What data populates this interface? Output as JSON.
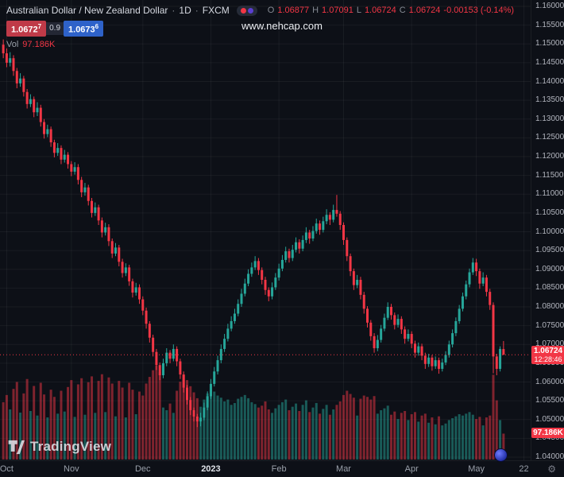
{
  "header": {
    "symbol": "Australian Dollar / New Zealand Dollar",
    "sep": "·",
    "interval": "1D",
    "exchange": "FXCM",
    "ohlc": {
      "o_label": "O",
      "o": "1.06877",
      "h_label": "H",
      "h": "1.07091",
      "l_label": "L",
      "l": "1.06724",
      "c_label": "C",
      "c": "1.06724",
      "change": "-0.00153 (-0.14%)"
    }
  },
  "quote": {
    "sell": "1.0672",
    "sell_sup": "7",
    "spread": "0.9",
    "buy": "1.0673",
    "buy_sup": "6"
  },
  "volume_legend": {
    "label": "Vol",
    "value": "97.186K"
  },
  "watermark": "www.nehcap.com",
  "logo_text": "TradingView",
  "price_tag": {
    "price": "1.06724",
    "countdown": "12:28:46"
  },
  "volume_tag": "97.186K",
  "icons": {
    "gear": "⚙"
  },
  "colors": {
    "up": "#26a69a",
    "down": "#f23645",
    "grid": "rgba(255,255,255,0.05)",
    "background": "#0d1017",
    "axis_text": "#b2b5be",
    "sell_badge": "#bf3a48",
    "buy_badge": "#2e62c9"
  },
  "chart_data": {
    "type": "candlestick",
    "title": "Australian Dollar / New Zealand Dollar · 1D · FXCM",
    "legend_volume": "Vol 97.186K",
    "y_axis": {
      "min": 1.04,
      "max": 1.16,
      "tick_step": 0.005,
      "tick_labels": [
        "1.16000",
        "1.15500",
        "1.15000",
        "1.14500",
        "1.14000",
        "1.13500",
        "1.13000",
        "1.12500",
        "1.12000",
        "1.11500",
        "1.11000",
        "1.10500",
        "1.10000",
        "1.09500",
        "1.09000",
        "1.08500",
        "1.08000",
        "1.07500",
        "1.07000",
        "1.06500",
        "1.06000",
        "1.05500",
        "1.05000",
        "1.04500",
        "1.04000"
      ]
    },
    "x_axis": {
      "labels": [
        {
          "text": "Oct",
          "i": 1
        },
        {
          "text": "Nov",
          "i": 20
        },
        {
          "text": "Dec",
          "i": 41
        },
        {
          "text": "2023",
          "i": 61,
          "emph": true
        },
        {
          "text": "Feb",
          "i": 81
        },
        {
          "text": "Mar",
          "i": 100
        },
        {
          "text": "Apr",
          "i": 120
        },
        {
          "text": "May",
          "i": 139
        },
        {
          "text": "22",
          "i": 153
        }
      ]
    },
    "last_price": 1.06724,
    "volume_max": 352,
    "candles": [
      [
        1.1498,
        1.1512,
        1.1462,
        1.1475,
        215
      ],
      [
        1.1475,
        1.1488,
        1.1438,
        1.145,
        242
      ],
      [
        1.145,
        1.1478,
        1.144,
        1.1462,
        188
      ],
      [
        1.1462,
        1.147,
        1.1415,
        1.1428,
        265
      ],
      [
        1.1428,
        1.1436,
        1.1382,
        1.1395,
        291
      ],
      [
        1.1395,
        1.1422,
        1.1386,
        1.1408,
        176
      ],
      [
        1.1408,
        1.1415,
        1.136,
        1.1372,
        248
      ],
      [
        1.1372,
        1.138,
        1.1328,
        1.134,
        302
      ],
      [
        1.134,
        1.1366,
        1.1332,
        1.1353,
        182
      ],
      [
        1.1353,
        1.136,
        1.1305,
        1.1318,
        276
      ],
      [
        1.1318,
        1.1345,
        1.1308,
        1.133,
        165
      ],
      [
        1.133,
        1.1338,
        1.128,
        1.1292,
        288
      ],
      [
        1.1292,
        1.13,
        1.1248,
        1.126,
        244
      ],
      [
        1.126,
        1.1285,
        1.1252,
        1.1273,
        158
      ],
      [
        1.1273,
        1.128,
        1.1226,
        1.1238,
        262
      ],
      [
        1.1238,
        1.1245,
        1.1198,
        1.121,
        235
      ],
      [
        1.121,
        1.1236,
        1.1202,
        1.1223,
        172
      ],
      [
        1.1223,
        1.123,
        1.118,
        1.1192,
        258
      ],
      [
        1.1192,
        1.1218,
        1.1184,
        1.1205,
        180
      ],
      [
        1.1205,
        1.1212,
        1.1168,
        1.118,
        272
      ],
      [
        1.118,
        1.1188,
        1.1148,
        1.116,
        298
      ],
      [
        1.116,
        1.1185,
        1.1152,
        1.1172,
        160
      ],
      [
        1.1172,
        1.118,
        1.1126,
        1.1138,
        282
      ],
      [
        1.1138,
        1.1146,
        1.1092,
        1.1105,
        305
      ],
      [
        1.1105,
        1.113,
        1.1096,
        1.1118,
        168
      ],
      [
        1.1118,
        1.1125,
        1.107,
        1.1082,
        290
      ],
      [
        1.1082,
        1.109,
        1.1038,
        1.105,
        312
      ],
      [
        1.105,
        1.1078,
        1.1042,
        1.1065,
        175
      ],
      [
        1.1065,
        1.1072,
        1.1018,
        1.103,
        295
      ],
      [
        1.103,
        1.1038,
        1.0985,
        1.0998,
        320
      ],
      [
        1.0998,
        1.1024,
        1.099,
        1.1012,
        178
      ],
      [
        1.1012,
        1.102,
        1.0962,
        1.0975,
        308
      ],
      [
        1.0975,
        1.0982,
        1.093,
        1.0942,
        285
      ],
      [
        1.0942,
        1.097,
        1.0935,
        1.0958,
        162
      ],
      [
        1.0958,
        1.0965,
        1.0908,
        1.092,
        295
      ],
      [
        1.092,
        1.0928,
        1.0878,
        1.089,
        270
      ],
      [
        1.089,
        1.0916,
        1.0882,
        1.0905,
        158
      ],
      [
        1.0905,
        1.0912,
        1.0856,
        1.0868,
        288
      ],
      [
        1.0868,
        1.0875,
        1.0825,
        1.0838,
        262
      ],
      [
        1.0838,
        1.0864,
        1.083,
        1.0852,
        170
      ],
      [
        1.0852,
        1.086,
        1.0808,
        1.082,
        255
      ],
      [
        1.082,
        1.0828,
        1.0778,
        1.079,
        240
      ],
      [
        1.079,
        1.0798,
        1.0742,
        1.0755,
        285
      ],
      [
        1.0755,
        1.0762,
        1.0705,
        1.0718,
        310
      ],
      [
        1.0718,
        1.0726,
        1.0668,
        1.068,
        335
      ],
      [
        1.068,
        1.0688,
        1.0632,
        1.0645,
        352
      ],
      [
        1.0645,
        1.0652,
        1.0605,
        1.0618,
        328
      ],
      [
        1.0618,
        1.0662,
        1.061,
        1.065,
        195
      ],
      [
        1.065,
        1.069,
        1.0642,
        1.0678,
        185
      ],
      [
        1.0678,
        1.0685,
        1.065,
        1.0662,
        210
      ],
      [
        1.0662,
        1.07,
        1.0655,
        1.0688,
        175
      ],
      [
        1.0688,
        1.0695,
        1.0642,
        1.0655,
        258
      ],
      [
        1.0655,
        1.0662,
        1.0608,
        1.062,
        292
      ],
      [
        1.062,
        1.0628,
        1.0572,
        1.0585,
        315
      ],
      [
        1.0585,
        1.0592,
        1.054,
        1.0552,
        298
      ],
      [
        1.0552,
        1.056,
        1.0512,
        1.0525,
        275
      ],
      [
        1.0525,
        1.0532,
        1.0495,
        1.0508,
        252
      ],
      [
        1.0508,
        1.0515,
        1.048,
        1.0495,
        230
      ],
      [
        1.0495,
        1.0518,
        1.0482,
        1.0505,
        198
      ],
      [
        1.0505,
        1.0545,
        1.0498,
        1.0532,
        225
      ],
      [
        1.0532,
        1.0575,
        1.0525,
        1.0562,
        248
      ],
      [
        1.0562,
        1.0608,
        1.0555,
        1.0595,
        262
      ],
      [
        1.0595,
        1.064,
        1.0588,
        1.0628,
        255
      ],
      [
        1.0628,
        1.067,
        1.062,
        1.0658,
        240
      ],
      [
        1.0658,
        1.07,
        1.065,
        1.0688,
        232
      ],
      [
        1.0688,
        1.0728,
        1.068,
        1.0715,
        218
      ],
      [
        1.0715,
        1.0755,
        1.0708,
        1.0742,
        225
      ],
      [
        1.0742,
        1.0775,
        1.0735,
        1.0762,
        205
      ],
      [
        1.0762,
        1.0795,
        1.0755,
        1.0782,
        212
      ],
      [
        1.0782,
        1.082,
        1.0775,
        1.0808,
        228
      ],
      [
        1.0808,
        1.0848,
        1.08,
        1.0835,
        235
      ],
      [
        1.0835,
        1.0875,
        1.0828,
        1.0862,
        242
      ],
      [
        1.0862,
        1.09,
        1.0855,
        1.0888,
        230
      ],
      [
        1.0888,
        1.0918,
        1.088,
        1.0905,
        215
      ],
      [
        1.0905,
        1.0935,
        1.0898,
        1.0922,
        208
      ],
      [
        1.0922,
        1.093,
        1.0885,
        1.0898,
        195
      ],
      [
        1.0898,
        1.0905,
        1.086,
        1.0872,
        202
      ],
      [
        1.0872,
        1.088,
        1.0832,
        1.0845,
        218
      ],
      [
        1.0845,
        1.0852,
        1.0815,
        1.0828,
        188
      ],
      [
        1.0828,
        1.0865,
        1.082,
        1.0852,
        175
      ],
      [
        1.0852,
        1.089,
        1.0845,
        1.0878,
        192
      ],
      [
        1.0878,
        1.0915,
        1.087,
        1.0902,
        205
      ],
      [
        1.0902,
        1.0938,
        1.0895,
        1.0925,
        215
      ],
      [
        1.0925,
        1.096,
        1.0918,
        1.0948,
        225
      ],
      [
        1.0948,
        1.0955,
        1.0918,
        1.093,
        185
      ],
      [
        1.093,
        1.0965,
        1.0922,
        1.0952,
        198
      ],
      [
        1.0952,
        1.0985,
        1.0945,
        1.0972,
        210
      ],
      [
        1.0972,
        1.098,
        1.0942,
        1.0955,
        182
      ],
      [
        1.0955,
        1.099,
        1.0948,
        1.0978,
        205
      ],
      [
        1.0978,
        1.1012,
        1.097,
        1.0998,
        222
      ],
      [
        1.0998,
        1.1005,
        1.0968,
        1.0982,
        178
      ],
      [
        1.0982,
        1.1015,
        1.0975,
        1.1002,
        195
      ],
      [
        1.1002,
        1.1035,
        1.0995,
        1.1022,
        212
      ],
      [
        1.1022,
        1.103,
        1.0992,
        1.1005,
        172
      ],
      [
        1.1005,
        1.104,
        1.0998,
        1.1028,
        190
      ],
      [
        1.1028,
        1.106,
        1.102,
        1.1045,
        205
      ],
      [
        1.1045,
        1.1052,
        1.1018,
        1.1032,
        168
      ],
      [
        1.1032,
        1.1072,
        1.1025,
        1.1058,
        188
      ],
      [
        1.1058,
        1.1098,
        1.104,
        1.1048,
        205
      ],
      [
        1.1048,
        1.1055,
        1.1005,
        1.1018,
        218
      ],
      [
        1.1018,
        1.1025,
        1.0965,
        1.0978,
        242
      ],
      [
        1.0978,
        1.0985,
        1.0922,
        1.0935,
        258
      ],
      [
        1.0935,
        1.0942,
        1.0882,
        1.0895,
        246
      ],
      [
        1.0895,
        1.0902,
        1.0845,
        1.0858,
        232
      ],
      [
        1.0858,
        1.0885,
        1.085,
        1.0872,
        165
      ],
      [
        1.0872,
        1.088,
        1.082,
        1.0832,
        228
      ],
      [
        1.0832,
        1.084,
        1.0782,
        1.0795,
        240
      ],
      [
        1.0795,
        1.0802,
        1.0745,
        1.0758,
        235
      ],
      [
        1.0758,
        1.0765,
        1.071,
        1.0722,
        225
      ],
      [
        1.0722,
        1.073,
        1.0678,
        1.069,
        238
      ],
      [
        1.069,
        1.0725,
        1.0682,
        1.0712,
        172
      ],
      [
        1.0712,
        1.0752,
        1.0705,
        1.0742,
        185
      ],
      [
        1.0742,
        1.0782,
        1.0735,
        1.0771,
        192
      ],
      [
        1.0771,
        1.0812,
        1.0765,
        1.08,
        202
      ],
      [
        1.08,
        1.0808,
        1.0766,
        1.0778,
        168
      ],
      [
        1.0778,
        1.0785,
        1.074,
        1.0752,
        180
      ],
      [
        1.0752,
        1.078,
        1.0745,
        1.0768,
        152
      ],
      [
        1.0768,
        1.0775,
        1.0728,
        1.074,
        175
      ],
      [
        1.074,
        1.0748,
        1.0702,
        1.0715,
        182
      ],
      [
        1.0715,
        1.074,
        1.0708,
        1.0728,
        148
      ],
      [
        1.0728,
        1.0735,
        1.069,
        1.0702,
        170
      ],
      [
        1.0702,
        1.071,
        1.0665,
        1.0678,
        178
      ],
      [
        1.0678,
        1.0705,
        1.067,
        1.0695,
        142
      ],
      [
        1.0695,
        1.0702,
        1.0658,
        1.067,
        165
      ],
      [
        1.067,
        1.0678,
        1.0635,
        1.0648,
        172
      ],
      [
        1.0648,
        1.0675,
        1.064,
        1.0665,
        138
      ],
      [
        1.0665,
        1.0672,
        1.063,
        1.0642,
        158
      ],
      [
        1.0642,
        1.0668,
        1.0635,
        1.0658,
        132
      ],
      [
        1.0658,
        1.0665,
        1.0622,
        1.0635,
        162
      ],
      [
        1.0635,
        1.0662,
        1.0628,
        1.0652,
        128
      ],
      [
        1.0652,
        1.0682,
        1.0645,
        1.0672,
        135
      ],
      [
        1.0672,
        1.071,
        1.0665,
        1.07,
        148
      ],
      [
        1.07,
        1.074,
        1.0692,
        1.073,
        155
      ],
      [
        1.073,
        1.0772,
        1.0722,
        1.0762,
        162
      ],
      [
        1.0762,
        1.0805,
        1.0755,
        1.0795,
        170
      ],
      [
        1.0795,
        1.0838,
        1.0788,
        1.0828,
        165
      ],
      [
        1.0828,
        1.087,
        1.082,
        1.086,
        172
      ],
      [
        1.086,
        1.0902,
        1.0852,
        1.0892,
        178
      ],
      [
        1.0892,
        1.093,
        1.0885,
        1.0918,
        168
      ],
      [
        1.0918,
        1.0928,
        1.0882,
        1.0895,
        152
      ],
      [
        1.0895,
        1.0902,
        1.0848,
        1.0862,
        160
      ],
      [
        1.0862,
        1.0892,
        1.0855,
        1.0878,
        128
      ],
      [
        1.0878,
        1.0885,
        1.0828,
        1.084,
        158
      ],
      [
        1.084,
        1.0848,
        1.0792,
        1.0805,
        165
      ],
      [
        1.0805,
        1.0812,
        1.0623,
        1.0668,
        318
      ],
      [
        1.0668,
        1.0675,
        1.0618,
        1.0635,
        222
      ],
      [
        1.0635,
        1.0695,
        1.0628,
        1.0688,
        148
      ],
      [
        1.06877,
        1.07091,
        1.06724,
        1.06724,
        97.186
      ]
    ]
  }
}
